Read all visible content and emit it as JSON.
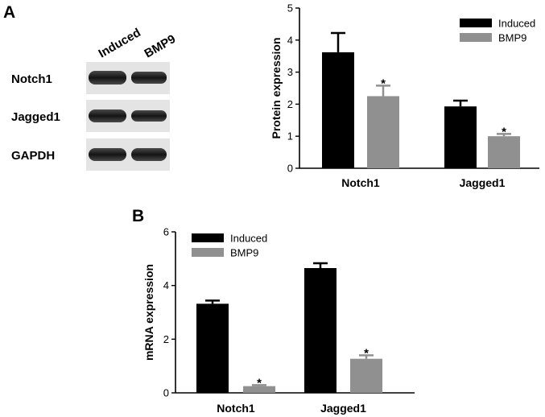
{
  "panels": {
    "a": "A",
    "b": "B"
  },
  "blot": {
    "lanes": [
      "Induced",
      "BMP9"
    ],
    "rows": [
      "Notch1",
      "Jagged1",
      "GAPDH"
    ]
  },
  "chart_data": [
    {
      "type": "bar",
      "categories": [
        "Notch1",
        "Jagged1"
      ],
      "ylabel": "Protein expression",
      "ylim": [
        0,
        5
      ],
      "yticks": [
        0,
        1,
        2,
        3,
        4,
        5
      ],
      "legend_position": "top-right",
      "series": [
        {
          "name": "Induced",
          "color": "#000000",
          "values": [
            3.62,
            1.93
          ],
          "errors": [
            0.6,
            0.18
          ],
          "markers": [
            "",
            ""
          ]
        },
        {
          "name": "BMP9",
          "color": "#909090",
          "values": [
            2.25,
            1.0
          ],
          "errors": [
            0.33,
            0.07
          ],
          "markers": [
            "*",
            "*"
          ]
        }
      ]
    },
    {
      "type": "bar",
      "categories": [
        "Notch1",
        "Jagged1"
      ],
      "ylabel": "mRNA expression",
      "ylim": [
        0,
        6
      ],
      "yticks": [
        0,
        2,
        4,
        6
      ],
      "legend_position": "top-left",
      "series": [
        {
          "name": "Induced",
          "color": "#000000",
          "values": [
            3.32,
            4.65
          ],
          "errors": [
            0.12,
            0.18
          ],
          "markers": [
            "",
            ""
          ]
        },
        {
          "name": "BMP9",
          "color": "#909090",
          "values": [
            0.25,
            1.27
          ],
          "errors": [
            0.04,
            0.13
          ],
          "markers": [
            "*",
            "*"
          ]
        }
      ]
    }
  ]
}
